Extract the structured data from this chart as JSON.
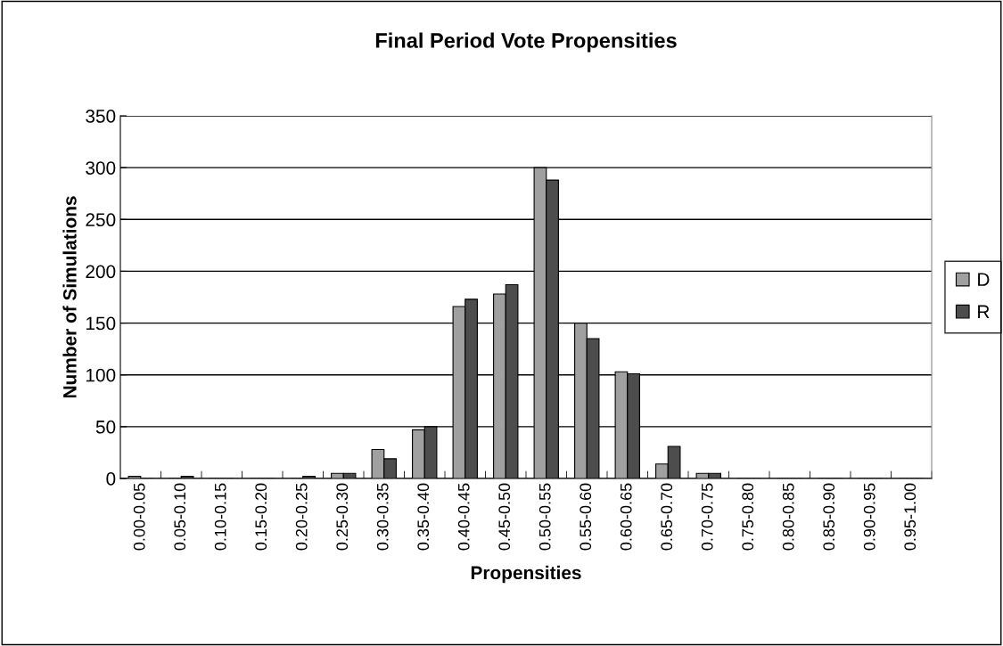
{
  "chart_data": {
    "type": "bar",
    "title": "Final Period Vote Propensities",
    "xlabel": "Propensities",
    "ylabel": "Number of Simulations",
    "categories": [
      "0.00-0.05",
      "0.05-0.10",
      "0.10-0.15",
      "0.15-0.20",
      "0.20-0.25",
      "0.25-0.30",
      "0.30-0.35",
      "0.35-0.40",
      "0.40-0.45",
      "0.45-0.50",
      "0.50-0.55",
      "0.55-0.60",
      "0.60-0.65",
      "0.65-0.70",
      "0.70-0.75",
      "0.75-0.80",
      "0.80-0.85",
      "0.85-0.90",
      "0.90-0.95",
      "0.95-1.00"
    ],
    "series": [
      {
        "name": "D",
        "color": "#a0a0a0",
        "values": [
          2,
          0,
          0,
          0,
          0,
          5,
          28,
          47,
          166,
          178,
          300,
          150,
          103,
          14,
          5,
          0,
          0,
          0,
          0,
          0
        ]
      },
      {
        "name": "R",
        "color": "#4d4d4d",
        "values": [
          0,
          2,
          0,
          0,
          2,
          5,
          19,
          50,
          173,
          187,
          288,
          135,
          101,
          31,
          5,
          0,
          0,
          0,
          0,
          0
        ]
      }
    ],
    "ylim": [
      0,
      350
    ],
    "yticks": [
      0,
      50,
      100,
      150,
      200,
      250,
      300,
      350
    ],
    "grid": "y",
    "legend": "right"
  }
}
